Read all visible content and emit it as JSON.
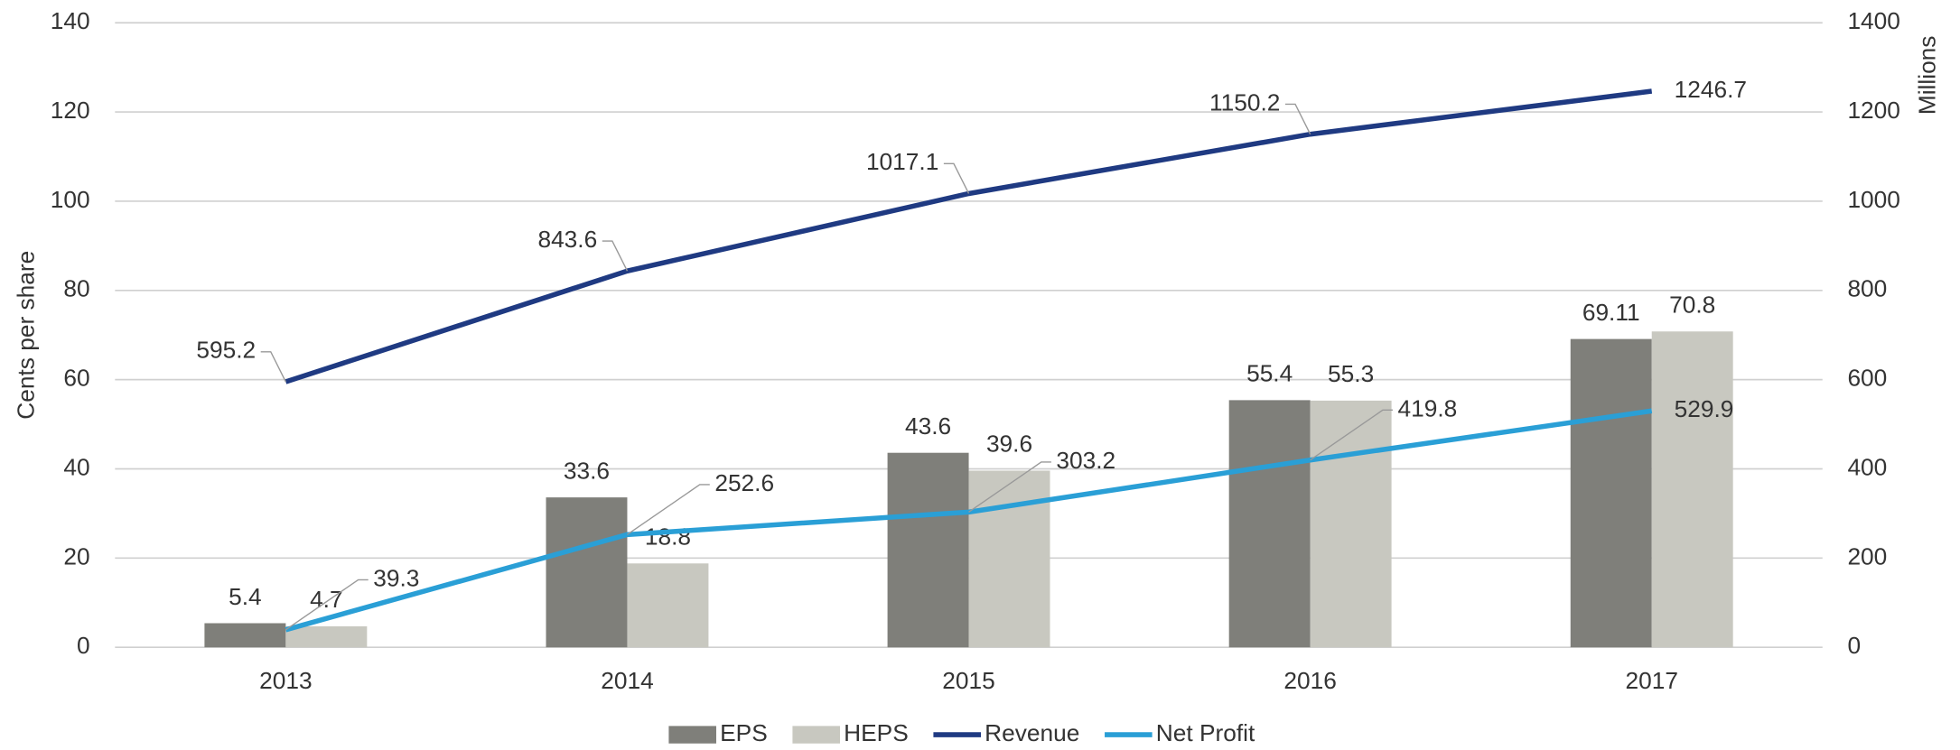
{
  "chart_data": {
    "type": "bar_line",
    "categories": [
      "2013",
      "2014",
      "2015",
      "2016",
      "2017"
    ],
    "ylabel": "Cents per share",
    "y2label": "Millions",
    "ylim": [
      0,
      140
    ],
    "yticks": [
      0,
      20,
      40,
      60,
      80,
      100,
      120,
      140
    ],
    "y2lim": [
      0,
      1400
    ],
    "y2ticks": [
      0,
      200,
      400,
      600,
      800,
      1000,
      1200,
      1400
    ],
    "grid": true,
    "legend": "bottom",
    "series": [
      {
        "name": "EPS",
        "type": "bar",
        "color": "#7f7f7a",
        "values": [
          5.4,
          33.6,
          43.6,
          55.4,
          69.11
        ]
      },
      {
        "name": "HEPS",
        "type": "bar",
        "color": "#c8c8c0",
        "values": [
          4.7,
          18.8,
          39.6,
          55.3,
          70.8
        ]
      },
      {
        "name": "Revenue",
        "type": "line",
        "axis": "y2",
        "color": "#1f3a82",
        "values": [
          595.2,
          843.6,
          1017.1,
          1150.2,
          1246.7
        ]
      },
      {
        "name": "Net Profit",
        "type": "line",
        "axis": "y2",
        "color": "#2a9fd6",
        "values": [
          39.3,
          252.6,
          303.2,
          419.8,
          529.9
        ]
      }
    ]
  }
}
